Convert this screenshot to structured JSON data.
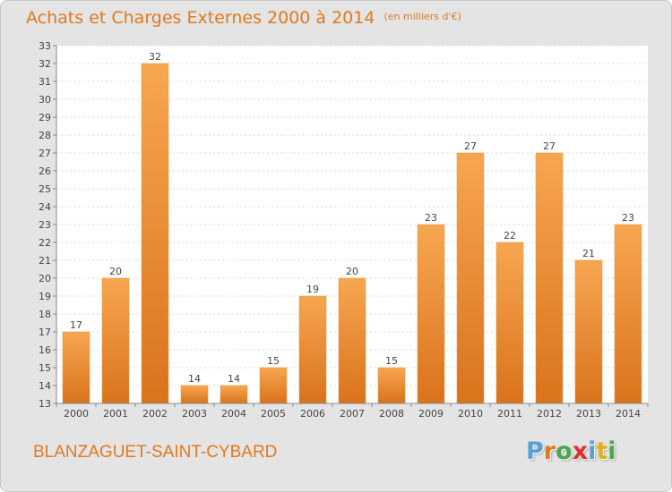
{
  "header": {
    "title": "Achats et Charges Externes 2000 à 2014",
    "unit": "(en milliers d'€)"
  },
  "footer": {
    "town": "BLANZAGUET-SAINT-CYBARD",
    "logo": "Proxiti"
  },
  "colors": {
    "accent": "#e07a1f",
    "bar_light": "#f7a650",
    "bar_dark": "#d9731c",
    "background": "#e4e4e4",
    "logo_letters": [
      "#5aa0d8",
      "#e07a1f",
      "#4aa84a",
      "#e03030",
      "#5aa0d8",
      "#e0b020",
      "#4aa84a"
    ]
  },
  "chart_data": {
    "type": "bar",
    "categories": [
      "2000",
      "2001",
      "2002",
      "2003",
      "2004",
      "2005",
      "2006",
      "2007",
      "2008",
      "2009",
      "2010",
      "2011",
      "2012",
      "2013",
      "2014"
    ],
    "values": [
      17,
      20,
      32,
      14,
      14,
      15,
      19,
      20,
      15,
      23,
      27,
      22,
      27,
      21,
      23
    ],
    "title": "Achats et Charges Externes 2000 à 2014",
    "ylim": [
      13,
      33
    ],
    "yticks": [
      13,
      14,
      15,
      16,
      17,
      18,
      19,
      20,
      21,
      22,
      23,
      24,
      25,
      26,
      27,
      28,
      29,
      30,
      31,
      32,
      33
    ],
    "grid": true,
    "legend": "none"
  }
}
